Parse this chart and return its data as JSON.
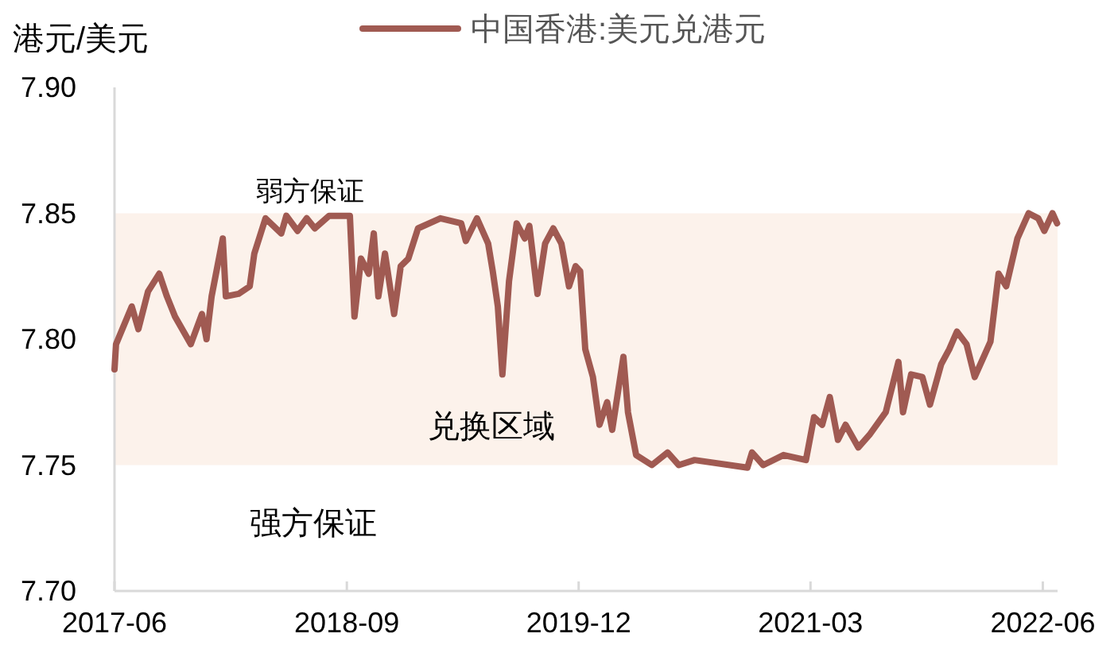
{
  "chart_data": {
    "type": "line",
    "ylabel": "港元/美元",
    "legend": "top",
    "xlim": [
      "2017-06-01",
      "2022-06-30"
    ],
    "xticks": [
      {
        "value": "2017-06-01",
        "label": "2017-06"
      },
      {
        "value": "2018-09-01",
        "label": "2018-09"
      },
      {
        "value": "2019-12-01",
        "label": "2019-12"
      },
      {
        "value": "2021-03-01",
        "label": "2021-03"
      },
      {
        "value": "2022-06-01",
        "label": "2022-06"
      }
    ],
    "ylim": [
      7.7,
      7.9
    ],
    "yticks": [
      {
        "value": 7.7,
        "label": "7.70"
      },
      {
        "value": 7.75,
        "label": "7.75"
      },
      {
        "value": 7.8,
        "label": "7.80"
      },
      {
        "value": 7.85,
        "label": "7.85"
      },
      {
        "value": 7.9,
        "label": "7.90"
      }
    ],
    "grid": false,
    "bands": [
      {
        "axis": "y",
        "from": 7.75,
        "to": 7.85,
        "label": "兑换区域",
        "color": "#fcf2eb"
      }
    ],
    "annotations": [
      "弱方保证",
      "强方保证"
    ],
    "x": [
      "2017-06-01",
      "2017-06-04",
      "2017-07-05",
      "2017-07-18",
      "2017-08-06",
      "2017-08-28",
      "2017-09-12",
      "2017-09-28",
      "2017-10-29",
      "2017-11-20",
      "2017-11-29",
      "2017-12-09",
      "2017-12-31",
      "2018-01-06",
      "2018-01-31",
      "2018-02-22",
      "2018-03-03",
      "2018-03-25",
      "2018-04-25",
      "2018-05-05",
      "2018-05-27",
      "2018-06-14",
      "2018-06-30",
      "2018-07-28",
      "2018-09-07",
      "2018-09-16",
      "2018-09-29",
      "2018-10-14",
      "2018-10-24",
      "2018-11-02",
      "2018-11-15",
      "2018-12-03",
      "2018-12-16",
      "2018-12-31",
      "2019-01-19",
      "2019-03-04",
      "2019-04-14",
      "2019-04-23",
      "2019-05-15",
      "2019-06-06",
      "2019-06-15",
      "2019-06-25",
      "2019-07-04",
      "2019-07-17",
      "2019-08-01",
      "2019-08-17",
      "2019-08-26",
      "2019-09-11",
      "2019-09-26",
      "2019-10-12",
      "2019-10-28",
      "2019-11-12",
      "2019-11-25",
      "2019-12-04",
      "2019-12-14",
      "2019-12-29",
      "2020-01-11",
      "2020-01-26",
      "2020-02-05",
      "2020-02-27",
      "2020-03-07",
      "2020-03-23",
      "2020-04-23",
      "2020-05-24",
      "2020-06-15",
      "2020-07-16",
      "2020-10-28",
      "2020-11-06",
      "2020-11-28",
      "2021-01-07",
      "2021-02-20",
      "2021-03-08",
      "2021-03-24",
      "2021-04-08",
      "2021-04-24",
      "2021-05-09",
      "2021-06-03",
      "2021-06-25",
      "2021-07-27",
      "2021-08-21",
      "2021-08-30",
      "2021-09-15",
      "2021-10-07",
      "2021-10-22",
      "2021-11-13",
      "2021-11-29",
      "2021-12-14",
      "2022-01-02",
      "2022-01-18",
      "2022-02-18",
      "2022-03-06",
      "2022-03-21",
      "2022-04-12",
      "2022-05-04",
      "2022-05-23",
      "2022-06-04",
      "2022-06-20",
      "2022-06-29"
    ],
    "series": [
      {
        "name": "中国香港:美元兑港元",
        "color": "#a05a52",
        "values": [
          7.788,
          7.798,
          7.813,
          7.804,
          7.819,
          7.826,
          7.817,
          7.809,
          7.798,
          7.81,
          7.8,
          7.817,
          7.84,
          7.817,
          7.818,
          7.821,
          7.834,
          7.848,
          7.842,
          7.849,
          7.843,
          7.848,
          7.844,
          7.849,
          7.849,
          7.809,
          7.832,
          7.826,
          7.842,
          7.817,
          7.834,
          7.81,
          7.829,
          7.832,
          7.844,
          7.848,
          7.846,
          7.839,
          7.848,
          7.838,
          7.827,
          7.813,
          7.786,
          7.823,
          7.846,
          7.84,
          7.845,
          7.818,
          7.838,
          7.844,
          7.838,
          7.821,
          7.829,
          7.827,
          7.796,
          7.785,
          7.766,
          7.775,
          7.764,
          7.793,
          7.771,
          7.754,
          7.75,
          7.755,
          7.75,
          7.752,
          7.749,
          7.755,
          7.75,
          7.754,
          7.752,
          7.769,
          7.766,
          7.777,
          7.76,
          7.766,
          7.757,
          7.762,
          7.771,
          7.791,
          7.771,
          7.786,
          7.785,
          7.774,
          7.79,
          7.796,
          7.803,
          7.798,
          7.785,
          7.799,
          7.826,
          7.821,
          7.84,
          7.85,
          7.848,
          7.843,
          7.85,
          7.846
        ]
      }
    ]
  }
}
